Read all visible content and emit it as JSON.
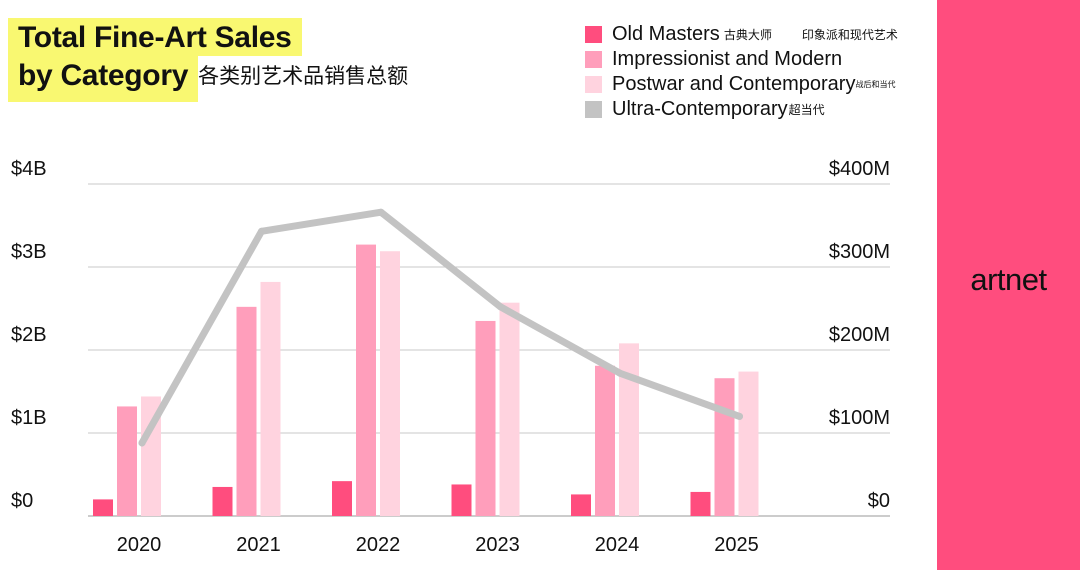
{
  "header": {
    "title_line1": "Total Fine-Art Sales",
    "title_line2": "by Category",
    "title_cn": "各类别艺术品销售总额"
  },
  "legend": {
    "items": [
      {
        "label": "Old Masters",
        "cn": "古典大师",
        "cn2": "印象派和现代艺术"
      },
      {
        "label": "Impressionist and Modern",
        "cn": ""
      },
      {
        "label": "Postwar and Contemporary",
        "cn": "战后和当代"
      },
      {
        "label": "Ultra-Contemporary",
        "cn": "超当代"
      }
    ]
  },
  "brand": {
    "logo_text": "artnet"
  },
  "colors": {
    "old_masters": "#ff4d7e",
    "impressionist_modern": "#ff9ebb",
    "postwar_contemporary": "#ffd3df",
    "ultra_contemporary": "#c3c3c3",
    "sidebar": "#ff4d7e",
    "title_highlight": "#f9f871"
  },
  "chart_data": {
    "type": "bar",
    "title": "Total Fine-Art Sales by Category",
    "categories": [
      "2020",
      "2021",
      "2022",
      "2023",
      "2024",
      "2025"
    ],
    "left_axis": {
      "ylim": [
        0,
        4
      ],
      "unit": "B",
      "ticks": [
        "$0",
        "$1B",
        "$2B",
        "$3B",
        "$4B"
      ]
    },
    "right_axis": {
      "ylim": [
        0,
        400
      ],
      "unit": "M",
      "ticks": [
        "$0",
        "$100M",
        "$200M",
        "$300M",
        "$400M"
      ]
    },
    "grid": true,
    "legend_position": "top-right",
    "series": [
      {
        "name": "Old Masters",
        "axis": "left",
        "kind": "bar",
        "values": [
          0.2,
          0.35,
          0.42,
          0.38,
          0.26,
          0.29
        ]
      },
      {
        "name": "Impressionist and Modern",
        "axis": "left",
        "kind": "bar",
        "values": [
          1.32,
          2.52,
          3.27,
          2.35,
          1.81,
          1.66
        ]
      },
      {
        "name": "Postwar and Contemporary",
        "axis": "left",
        "kind": "bar",
        "values": [
          1.44,
          2.82,
          3.19,
          2.57,
          2.08,
          1.74
        ]
      },
      {
        "name": "Ultra-Contemporary",
        "axis": "right",
        "kind": "line",
        "values": [
          88,
          343,
          366,
          252,
          172,
          120
        ]
      }
    ]
  }
}
